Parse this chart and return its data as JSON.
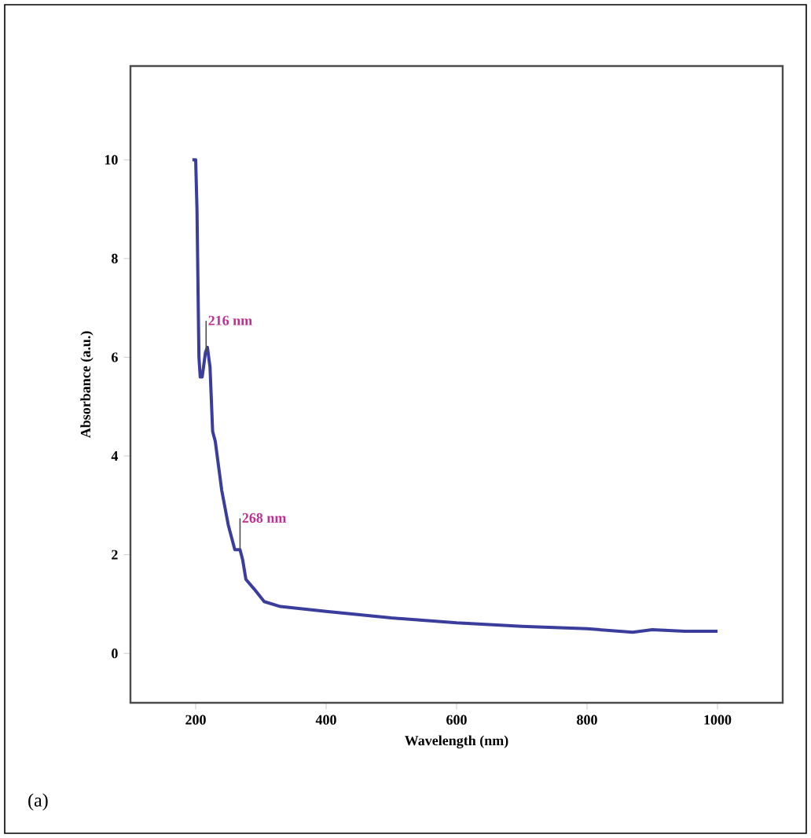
{
  "chart_data": {
    "type": "line",
    "xlabel": "Wavelength (nm)",
    "ylabel": "Absorbance (a.u.)",
    "x": [
      195,
      200,
      202,
      205,
      207,
      210,
      215,
      218,
      222,
      226,
      230,
      240,
      250,
      260,
      268,
      272,
      277,
      290,
      305,
      330,
      400,
      500,
      600,
      700,
      800,
      870,
      900,
      950,
      1000
    ],
    "values": [
      10,
      10,
      9,
      6,
      5.6,
      5.6,
      6.1,
      6.2,
      5.8,
      4.5,
      4.3,
      3.3,
      2.6,
      2.1,
      2.1,
      1.9,
      1.5,
      1.3,
      1.05,
      0.95,
      0.85,
      0.72,
      0.62,
      0.55,
      0.5,
      0.43,
      0.48,
      0.45,
      0.45
    ],
    "color": "#3a3d9c",
    "xlim": [
      100,
      1100
    ],
    "ylim": [
      -1,
      11.9
    ],
    "xticks": [
      200,
      400,
      600,
      800,
      1000
    ],
    "yticks": [
      0,
      2,
      4,
      6,
      8,
      10
    ],
    "annotations": [
      {
        "text": "216 nm",
        "x": 216,
        "y": 6.1
      },
      {
        "text": "268 nm",
        "x": 268,
        "y": 2.1
      },
      "(a)"
    ]
  }
}
